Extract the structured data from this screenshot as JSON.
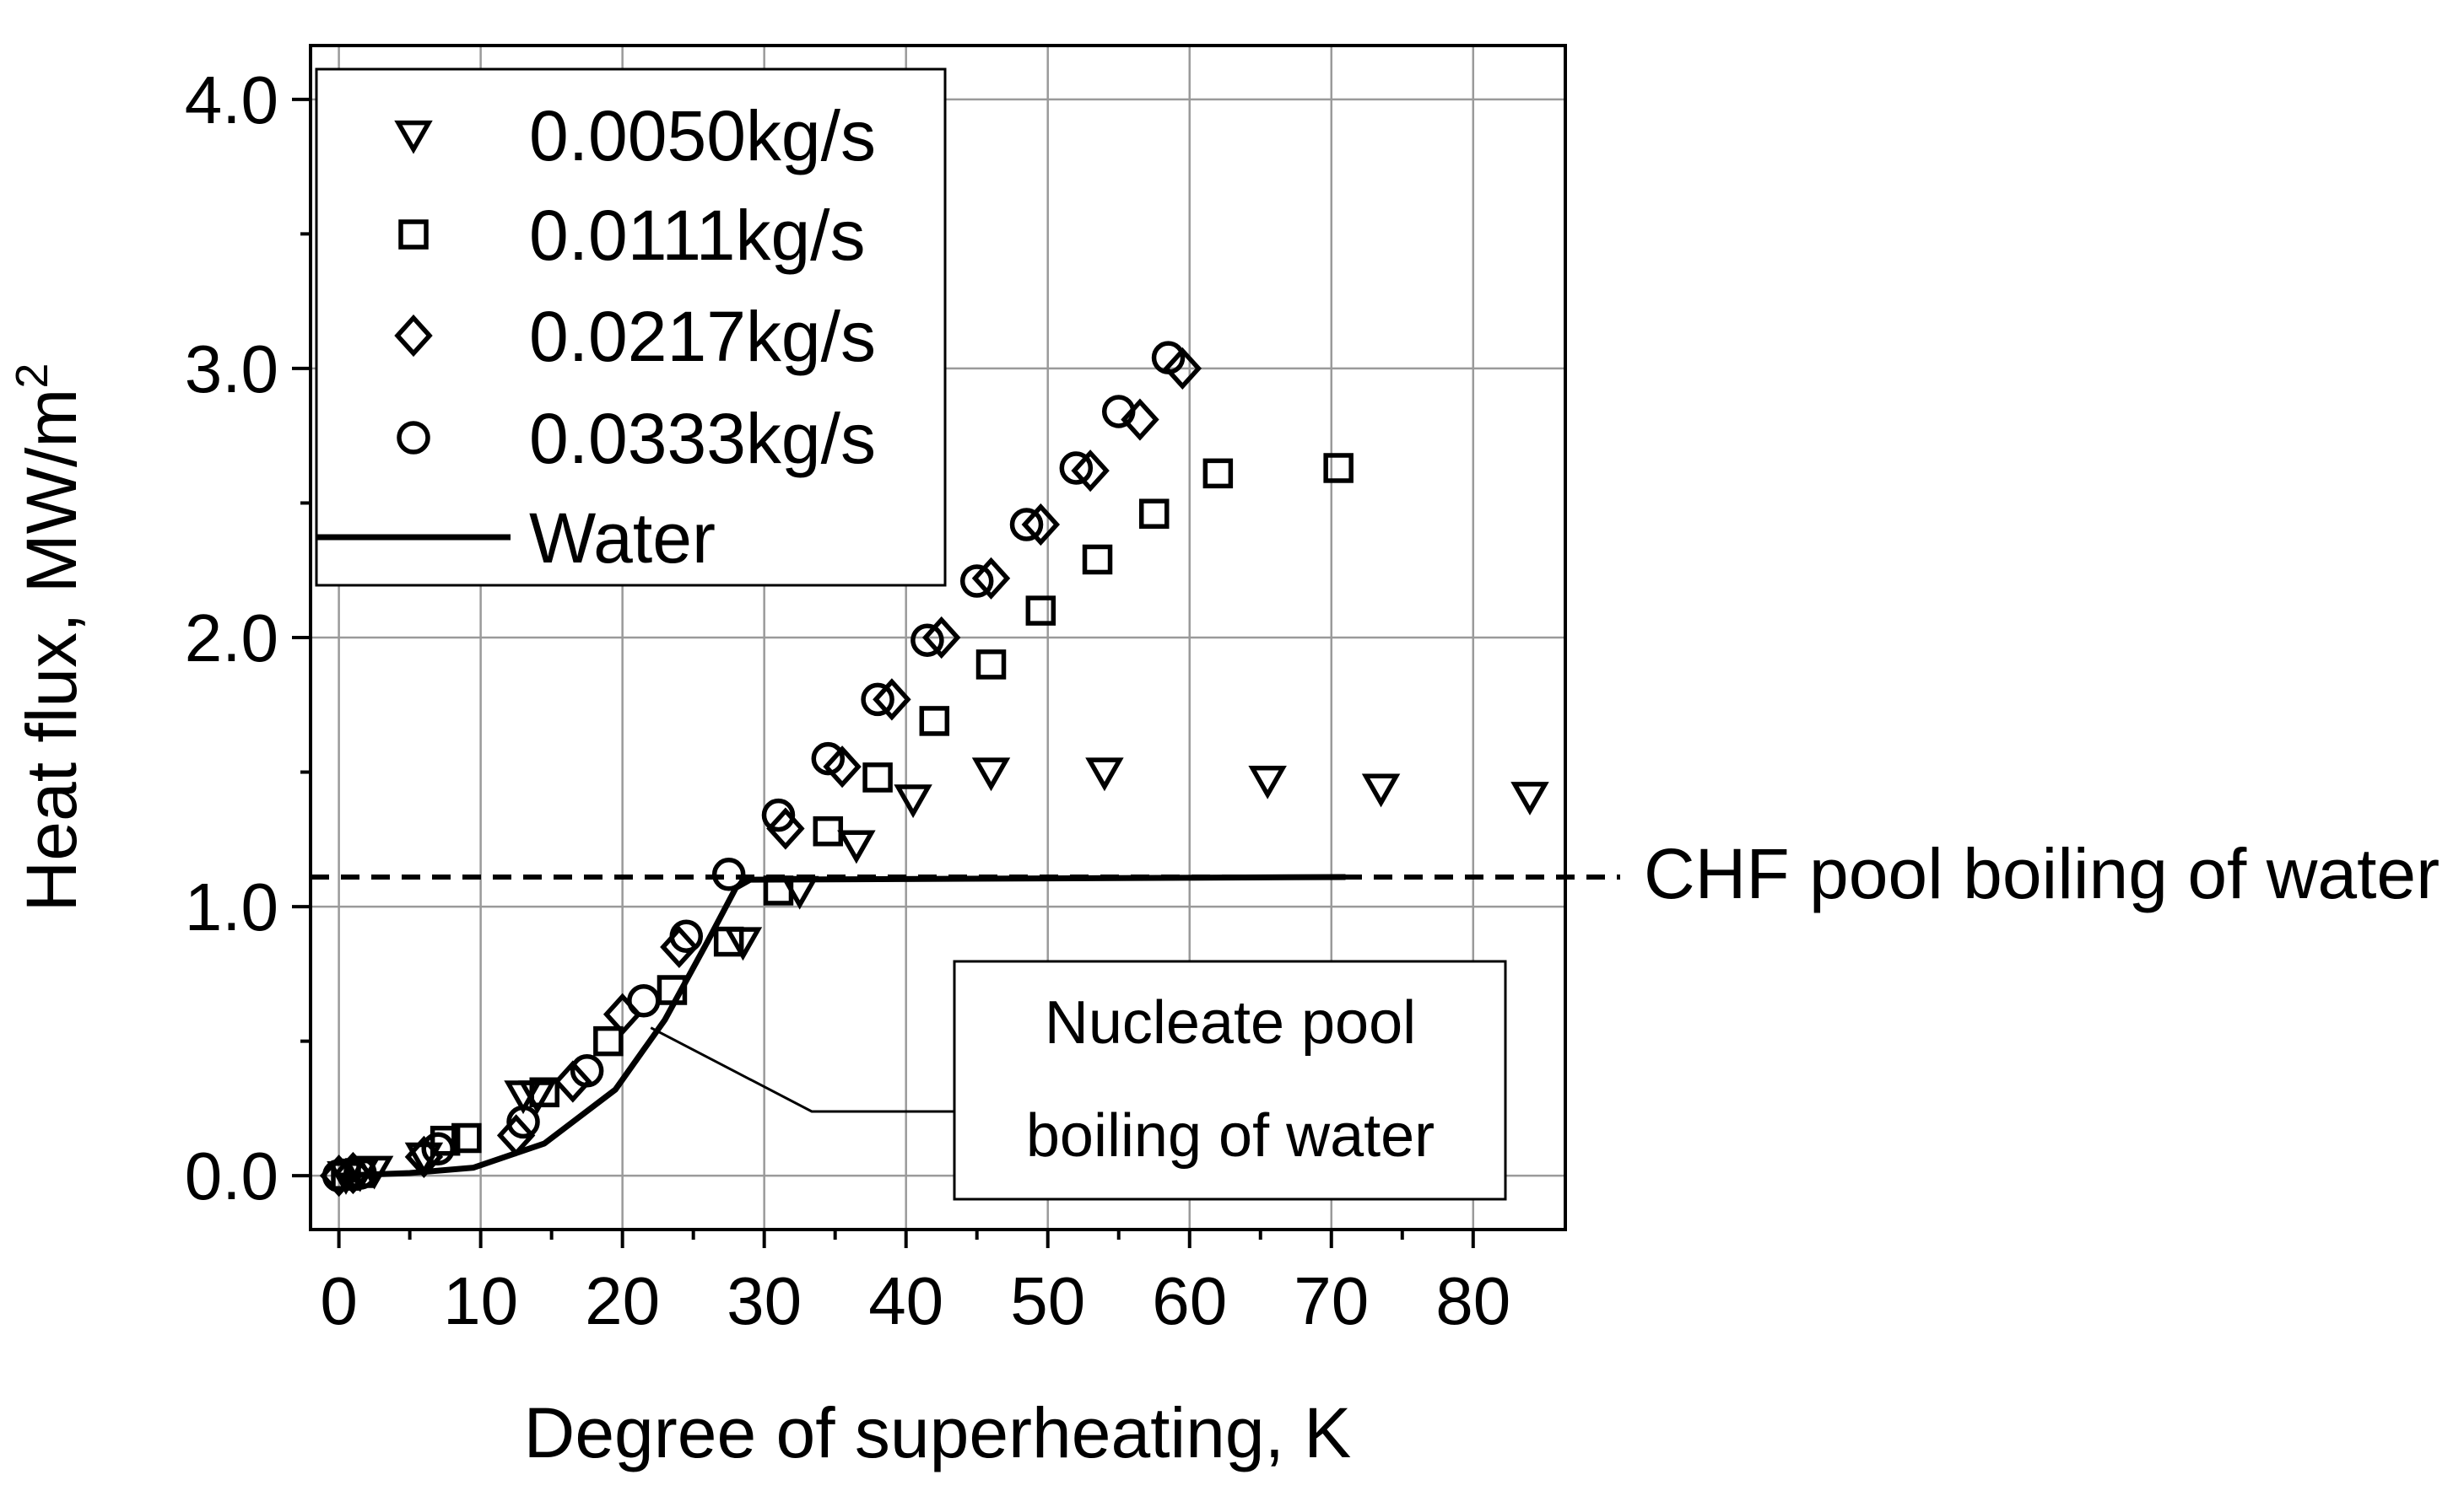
{
  "chart_data": {
    "type": "scatter",
    "xlabel": "Degree of superheating, K",
    "ylabel": "Heat flux, MW/m",
    "ylabel_superscript": "2",
    "xlim": [
      -2,
      86.5
    ],
    "ylim": [
      -0.2,
      4.2
    ],
    "x_ticks": [
      0,
      10,
      20,
      30,
      40,
      50,
      60,
      70,
      80
    ],
    "y_ticks": [
      0.0,
      1.0,
      2.0,
      3.0,
      4.0
    ],
    "x_tick_labels": [
      "0",
      "10",
      "20",
      "30",
      "40",
      "50",
      "60",
      "70",
      "80"
    ],
    "y_tick_labels": [
      "0.0",
      "1.0",
      "2.0",
      "3.0",
      "4.0"
    ],
    "grid": true,
    "legend_position": "top-left",
    "series": [
      {
        "name": "0.0050kg/s",
        "marker": "triangle-down",
        "points": [
          [
            0.5,
            0.0
          ],
          [
            1.5,
            0.01
          ],
          [
            2.5,
            0.02
          ],
          [
            6,
            0.07
          ],
          [
            13,
            0.3
          ],
          [
            14,
            0.3
          ],
          [
            28.5,
            0.87
          ],
          [
            32.5,
            1.06
          ],
          [
            36.5,
            1.23
          ],
          [
            40.5,
            1.4
          ],
          [
            46,
            1.5
          ],
          [
            54,
            1.5
          ],
          [
            65.5,
            1.47
          ],
          [
            73.5,
            1.44
          ],
          [
            84,
            1.41
          ]
        ]
      },
      {
        "name": "0.0111kg/s",
        "marker": "square",
        "points": [
          [
            0.5,
            0.0
          ],
          [
            1.5,
            0.01
          ],
          [
            7.5,
            0.13
          ],
          [
            9,
            0.14
          ],
          [
            14.5,
            0.31
          ],
          [
            19,
            0.5
          ],
          [
            23.5,
            0.69
          ],
          [
            27.5,
            0.87
          ],
          [
            31,
            1.06
          ],
          [
            34.5,
            1.28
          ],
          [
            38,
            1.48
          ],
          [
            42,
            1.69
          ],
          [
            46,
            1.9
          ],
          [
            49.5,
            2.1
          ],
          [
            53.5,
            2.29
          ],
          [
            57.5,
            2.46
          ],
          [
            62,
            2.61
          ],
          [
            70.5,
            2.63
          ]
        ]
      },
      {
        "name": "0.0217kg/s",
        "marker": "diamond",
        "points": [
          [
            0,
            0.0
          ],
          [
            1,
            0.01
          ],
          [
            6,
            0.07
          ],
          [
            12.5,
            0.15
          ],
          [
            16.5,
            0.35
          ],
          [
            20,
            0.6
          ],
          [
            24,
            0.85
          ],
          [
            31.5,
            1.29
          ],
          [
            35.5,
            1.52
          ],
          [
            39,
            1.77
          ],
          [
            42.5,
            2.0
          ],
          [
            46,
            2.22
          ],
          [
            49.5,
            2.42
          ],
          [
            53,
            2.62
          ],
          [
            56.5,
            2.81
          ],
          [
            59.5,
            3.0
          ]
        ]
      },
      {
        "name": "0.0333kg/s",
        "marker": "circle",
        "points": [
          [
            0,
            0.0
          ],
          [
            1.5,
            0.01
          ],
          [
            7,
            0.1
          ],
          [
            13,
            0.2
          ],
          [
            17.5,
            0.39
          ],
          [
            21.5,
            0.65
          ],
          [
            24.5,
            0.89
          ],
          [
            27.5,
            1.12
          ],
          [
            31,
            1.34
          ],
          [
            34.5,
            1.55
          ],
          [
            38,
            1.77
          ],
          [
            41.5,
            1.99
          ],
          [
            45,
            2.21
          ],
          [
            48.5,
            2.42
          ],
          [
            52,
            2.63
          ],
          [
            55,
            2.84
          ],
          [
            58.5,
            3.04
          ]
        ]
      },
      {
        "name": "Water",
        "marker": "line",
        "points": [
          [
            0,
            0.0
          ],
          [
            5,
            0.01
          ],
          [
            9.5,
            0.03
          ],
          [
            14.5,
            0.12
          ],
          [
            19.5,
            0.32
          ],
          [
            23,
            0.58
          ],
          [
            26,
            0.87
          ],
          [
            28,
            1.07
          ],
          [
            29,
            1.1
          ],
          [
            71,
            1.11
          ]
        ]
      }
    ],
    "reference_line": {
      "y": 1.11,
      "label": "CHF pool boiling of water",
      "style": "dashed"
    },
    "annotation": {
      "lines": [
        "Nucleate pool",
        "boiling of water"
      ],
      "target": [
        22,
        0.55
      ]
    }
  }
}
